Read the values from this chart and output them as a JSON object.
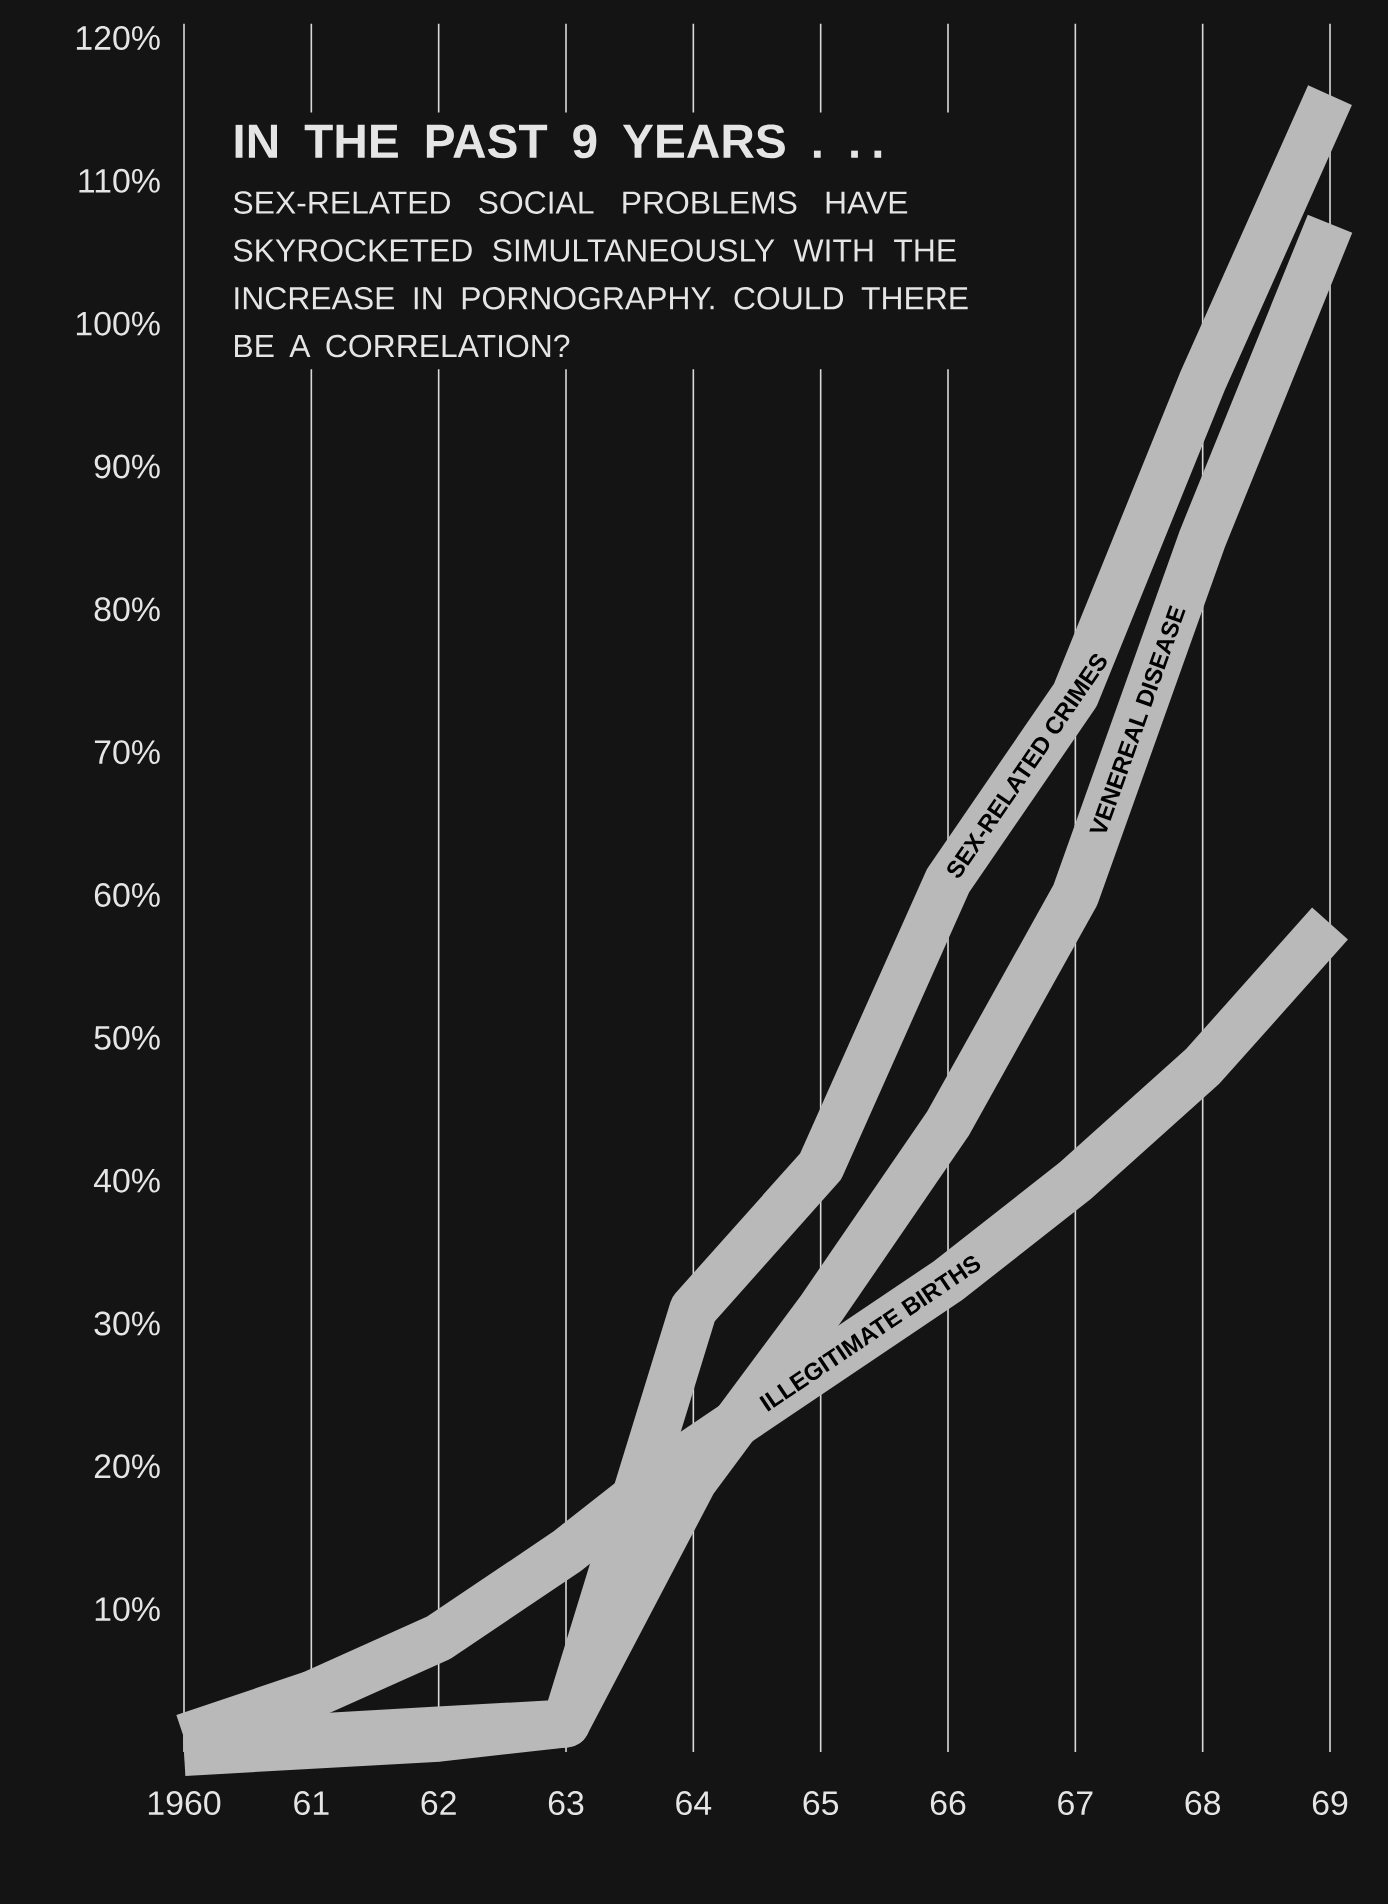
{
  "chart_data": {
    "type": "line",
    "title": "IN THE PAST 9 YEARS . . .",
    "subtitle": "SEX-RELATED SOCIAL PROBLEMS HAVE SKYROCKETED SIMULTANEOUSLY WITH THE INCREASE IN PORNOGRAPHY. COULD THERE BE A CORRELATION?",
    "categories": [
      "1960",
      "61",
      "62",
      "63",
      "64",
      "65",
      "66",
      "67",
      "68",
      "69"
    ],
    "series": [
      {
        "name": "ILLEGITIMATE BIRTHS",
        "color": "#b9b9b9",
        "values": [
          1,
          4,
          8,
          14,
          21,
          27,
          33,
          40,
          48,
          58
        ]
      },
      {
        "name": "SEX-RELATED CRIMES",
        "color": "#b9b9b9",
        "values": [
          0.5,
          1,
          1.5,
          2,
          31,
          41,
          61,
          74,
          96,
          116
        ]
      },
      {
        "name": "VENEREAL DISEASE",
        "color": "#b9b9b9",
        "values": [
          0,
          0.5,
          1,
          2,
          19,
          31,
          44,
          60,
          85,
          107
        ]
      }
    ],
    "ylim": [
      0,
      121
    ],
    "yticks": [
      {
        "value": 10,
        "label": "10%"
      },
      {
        "value": 20,
        "label": "20%"
      },
      {
        "value": 30,
        "label": "30%"
      },
      {
        "value": 40,
        "label": "40%"
      },
      {
        "value": 50,
        "label": "50%"
      },
      {
        "value": 60,
        "label": "60%"
      },
      {
        "value": 70,
        "label": "70%"
      },
      {
        "value": 80,
        "label": "80%"
      },
      {
        "value": 90,
        "label": "90%"
      },
      {
        "value": 100,
        "label": "100%"
      },
      {
        "value": 110,
        "label": "110%"
      },
      {
        "value": 120,
        "label": "120%"
      }
    ],
    "grid": "x",
    "legend": false
  }
}
